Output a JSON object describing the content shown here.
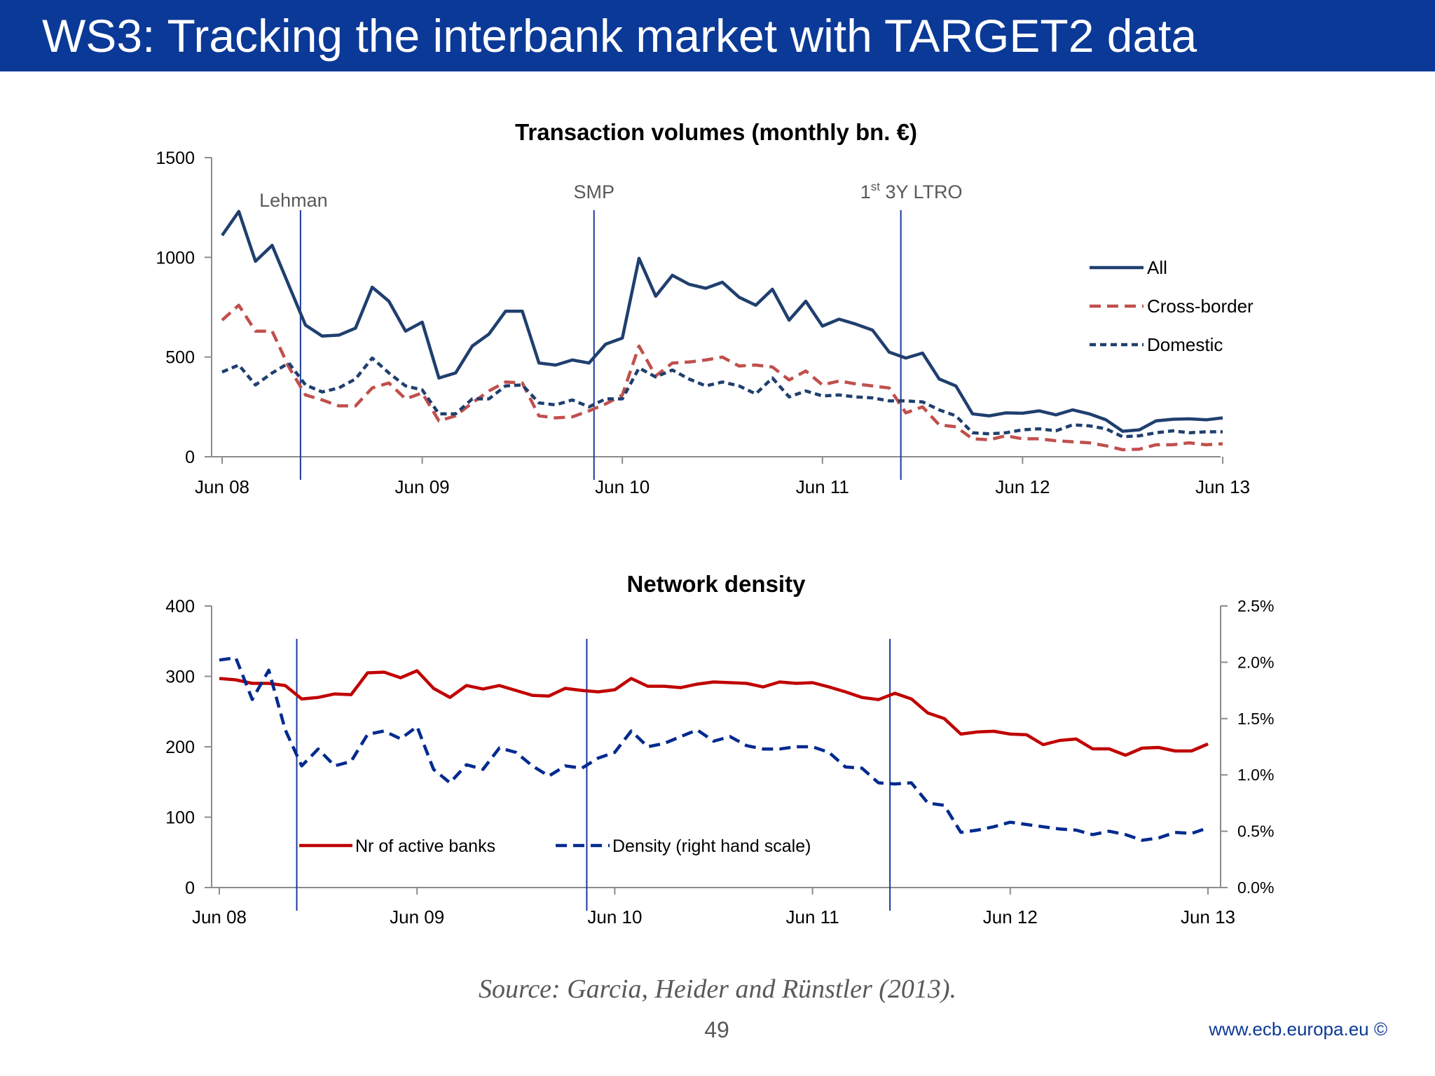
{
  "slide": {
    "title": "WS3: Tracking the interbank market with TARGET2 data",
    "source": "Source: Garcia, Heider and Rünstler (2013).",
    "page_number": "49",
    "footer_url": "www.ecb.europa.eu ©"
  },
  "colors": {
    "title_bar": "#0b3997",
    "all": "#1f3f6e",
    "cross_border": "#c0504d",
    "domestic": "#1f3f6e",
    "active_banks": "#c00000",
    "density": "#002a8f",
    "event_line": "#1a3a9c"
  },
  "chart_data": [
    {
      "type": "line",
      "title": "Transaction volumes (monthly bn. €)",
      "xlabel": "",
      "ylabel": "",
      "ylim": [
        0,
        1500
      ],
      "yticks": [
        "0",
        "500",
        "1000",
        "1500"
      ],
      "x_tick_labels": [
        "Jun 08",
        "Jun 09",
        "Jun 10",
        "Jun 11",
        "Jun 12",
        "Jun 13"
      ],
      "x_range_months": [
        0,
        60
      ],
      "events": [
        {
          "label": "Lehman",
          "month": 4.7
        },
        {
          "label": "SMP",
          "month": 22.3
        },
        {
          "label_sup": "st",
          "label_pre": "1",
          "label_post": " 3Y LTRO",
          "label": "1st 3Y LTRO",
          "month": 40.7
        }
      ],
      "legend": [
        "All",
        "Cross-border",
        "Domestic"
      ],
      "legend_position": "right",
      "series": [
        {
          "name": "All",
          "style": "solid",
          "values": [
            1110,
            1230,
            980,
            1060,
            860,
            660,
            605,
            610,
            645,
            850,
            780,
            630,
            675,
            395,
            420,
            555,
            615,
            730,
            730,
            470,
            460,
            485,
            470,
            565,
            595,
            995,
            805,
            910,
            865,
            845,
            875,
            800,
            760,
            840,
            685,
            780,
            655,
            690,
            665,
            635,
            525,
            495,
            520,
            390,
            355,
            215,
            205,
            220,
            218,
            230,
            210,
            235,
            215,
            185,
            128,
            135,
            180,
            188,
            190,
            185,
            195
          ]
        },
        {
          "name": "Cross-border",
          "style": "dashed",
          "values": [
            685,
            760,
            630,
            630,
            450,
            310,
            285,
            255,
            255,
            345,
            370,
            290,
            320,
            180,
            205,
            270,
            330,
            375,
            370,
            205,
            195,
            200,
            230,
            265,
            310,
            555,
            405,
            470,
            475,
            485,
            500,
            455,
            460,
            450,
            385,
            430,
            360,
            380,
            365,
            355,
            345,
            220,
            250,
            160,
            150,
            90,
            85,
            105,
            90,
            90,
            80,
            75,
            70,
            55,
            35,
            38,
            60,
            60,
            70,
            60,
            65
          ]
        },
        {
          "name": "Domestic",
          "style": "dotted",
          "values": [
            425,
            460,
            360,
            420,
            470,
            360,
            325,
            345,
            390,
            495,
            420,
            355,
            335,
            215,
            215,
            290,
            290,
            355,
            360,
            270,
            260,
            285,
            250,
            290,
            290,
            445,
            400,
            435,
            390,
            355,
            375,
            355,
            315,
            395,
            300,
            330,
            305,
            310,
            300,
            295,
            280,
            280,
            275,
            235,
            205,
            120,
            115,
            120,
            135,
            140,
            130,
            160,
            155,
            140,
            100,
            105,
            120,
            130,
            120,
            125,
            125
          ]
        }
      ]
    },
    {
      "type": "line",
      "title": "Network density",
      "ylim": [
        0,
        400
      ],
      "y2lim": [
        0,
        2.5
      ],
      "yticks": [
        "0",
        "100",
        "200",
        "300",
        "400"
      ],
      "y2ticks": [
        "0.0%",
        "0.5%",
        "1.0%",
        "1.5%",
        "2.0%",
        "2.5%"
      ],
      "x_tick_labels": [
        "Jun 08",
        "Jun 09",
        "Jun 10",
        "Jun 11",
        "Jun 12",
        "Jun 13"
      ],
      "x_range_months": [
        0,
        60
      ],
      "legend": [
        "Nr of active banks",
        "Density (right hand scale)"
      ],
      "legend_position": "bottom-left",
      "series": [
        {
          "name": "Nr of active banks",
          "axis": "left",
          "style": "solid",
          "values": [
            297,
            295,
            290,
            290,
            287,
            268,
            270,
            275,
            274,
            305,
            306,
            298,
            308,
            283,
            270,
            287,
            282,
            287,
            280,
            273,
            272,
            283,
            280,
            278,
            281,
            297,
            286,
            286,
            284,
            289,
            292,
            291,
            290,
            285,
            292,
            290,
            291,
            285,
            278,
            270,
            267,
            276,
            268,
            248,
            240,
            218,
            221,
            222,
            218,
            217,
            203,
            209,
            211,
            197,
            197,
            188,
            198,
            199,
            194,
            194,
            204
          ]
        },
        {
          "name": "Density (right hand scale)",
          "axis": "right",
          "style": "dashed",
          "values": [
            2.02,
            2.04,
            1.67,
            1.93,
            1.4,
            1.08,
            1.23,
            1.08,
            1.12,
            1.36,
            1.39,
            1.32,
            1.43,
            1.05,
            0.93,
            1.09,
            1.05,
            1.24,
            1.2,
            1.08,
            0.99,
            1.08,
            1.06,
            1.15,
            1.2,
            1.39,
            1.25,
            1.28,
            1.34,
            1.4,
            1.3,
            1.34,
            1.26,
            1.23,
            1.23,
            1.25,
            1.25,
            1.2,
            1.07,
            1.06,
            0.93,
            0.92,
            0.93,
            0.75,
            0.73,
            0.49,
            0.51,
            0.54,
            0.58,
            0.56,
            0.54,
            0.52,
            0.51,
            0.47,
            0.5,
            0.47,
            0.42,
            0.44,
            0.49,
            0.48,
            0.53
          ]
        }
      ]
    }
  ]
}
